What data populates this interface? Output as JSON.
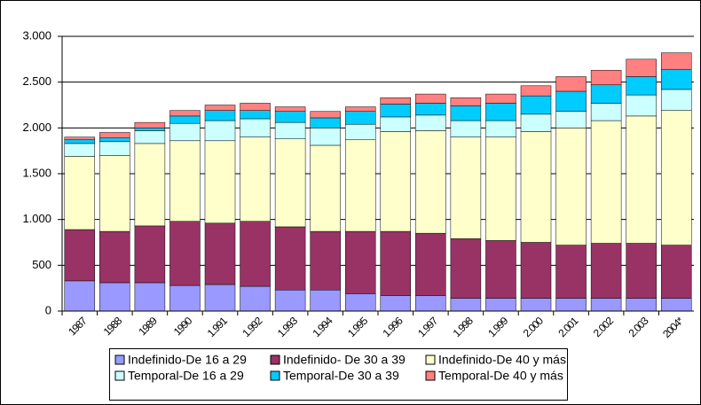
{
  "chart_data": {
    "type": "bar",
    "stacked": true,
    "categories": [
      "1987",
      "1988",
      "1989",
      "1990",
      "1.991",
      "1.992",
      "1.993",
      "1.994",
      "1.995",
      "1.996",
      "1.997",
      "1.998",
      "1.999",
      "2.000",
      "2.001",
      "2.002",
      "2.003",
      "2004*"
    ],
    "series": [
      {
        "name": "Indefinido-De 16 a 29",
        "color": "#9999ff",
        "values": [
          330,
          310,
          310,
          280,
          290,
          270,
          230,
          230,
          190,
          170,
          170,
          140,
          140,
          140,
          140,
          140,
          140,
          140
        ]
      },
      {
        "name": "Indefinido- De 30 a 39",
        "color": "#993366",
        "values": [
          560,
          560,
          620,
          700,
          670,
          710,
          690,
          640,
          680,
          700,
          680,
          650,
          630,
          610,
          580,
          600,
          600,
          580
        ]
      },
      {
        "name": "Indefinido-De 40 y más",
        "color": "#ffffcc",
        "values": [
          800,
          830,
          900,
          880,
          900,
          920,
          960,
          940,
          1000,
          1090,
          1120,
          1110,
          1130,
          1210,
          1280,
          1340,
          1390,
          1470
        ]
      },
      {
        "name": "Temporal-De 16 a 29",
        "color": "#ccffff",
        "values": [
          140,
          150,
          140,
          190,
          220,
          200,
          180,
          190,
          170,
          160,
          170,
          180,
          180,
          190,
          180,
          190,
          230,
          230
        ]
      },
      {
        "name": "Temporal-De 30 a 39",
        "color": "#00ccff",
        "values": [
          40,
          40,
          30,
          80,
          110,
          90,
          120,
          110,
          140,
          140,
          130,
          160,
          190,
          200,
          220,
          200,
          200,
          220
        ]
      },
      {
        "name": "Temporal-De 40 y más",
        "color": "#ff8080",
        "values": [
          30,
          60,
          60,
          60,
          60,
          80,
          50,
          70,
          50,
          70,
          100,
          90,
          100,
          110,
          160,
          160,
          190,
          180
        ]
      }
    ],
    "ylim": [
      0,
      3000
    ],
    "yticks": [
      0,
      500,
      {
        "value": 1000,
        "label": "1.000"
      },
      {
        "value": 1500,
        "label": "1.500"
      },
      {
        "value": 2000,
        "label": "2.000"
      },
      {
        "value": 2500,
        "label": "2.500"
      },
      {
        "value": 3000,
        "label": "3.000"
      }
    ],
    "grid": true,
    "legend": "bottom"
  }
}
